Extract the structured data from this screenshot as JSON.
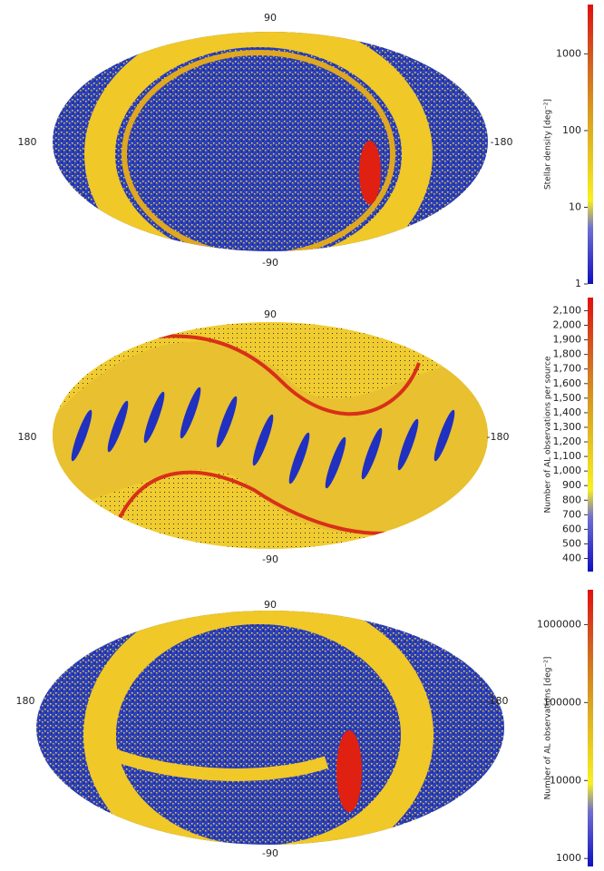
{
  "chart_data": [
    {
      "type": "map",
      "lat_labels": [
        "90",
        "-90"
      ],
      "lon_labels": [
        "180",
        "-180"
      ],
      "colorbar": {
        "label": "Stellar density [deg⁻²]",
        "log": true,
        "ylim": [
          1,
          4400
        ],
        "yticks": [
          1,
          10,
          100,
          1000
        ]
      }
    },
    {
      "type": "map",
      "lat_labels": [
        "90",
        "-90"
      ],
      "lon_labels": [
        "180",
        "-180"
      ],
      "colorbar": {
        "label": "Number of AL observations per source",
        "log": false,
        "ylim": [
          310,
          2190
        ],
        "yticks": [
          400,
          500,
          600,
          700,
          800,
          900,
          {
            "value": 1000,
            "label": "1,000"
          },
          {
            "value": 1100,
            "label": "1,100"
          },
          {
            "value": 1200,
            "label": "1,200"
          },
          {
            "value": 1300,
            "label": "1,300"
          },
          {
            "value": 1400,
            "label": "1,400"
          },
          {
            "value": 1500,
            "label": "1,500"
          },
          {
            "value": 1600,
            "label": "1,600"
          },
          {
            "value": 1700,
            "label": "1,700"
          },
          {
            "value": 1800,
            "label": "1,800"
          },
          {
            "value": 1900,
            "label": "1,900"
          },
          {
            "value": 2000,
            "label": "2,000"
          },
          {
            "value": 2100,
            "label": "2,100"
          }
        ]
      }
    },
    {
      "type": "map",
      "lat_labels": [
        "90",
        "-90"
      ],
      "lon_labels": [
        "180",
        "-180"
      ],
      "colorbar": {
        "label": "Number of AL observations [deg⁻²]",
        "log": true,
        "ylim": [
          790,
          2800000
        ],
        "yticks": [
          1000,
          10000,
          100000,
          1000000
        ]
      }
    }
  ]
}
